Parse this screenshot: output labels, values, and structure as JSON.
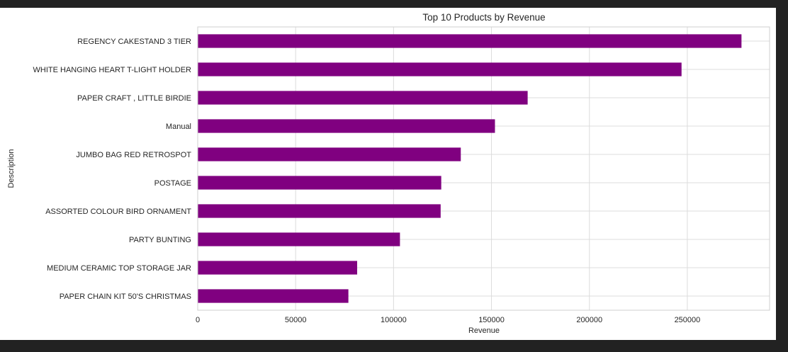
{
  "colors": {
    "background": "#222222",
    "figure": "#ffffff",
    "bar": "#800080",
    "grid": "#dcdcdc",
    "text": "#262626"
  },
  "chart_data": {
    "type": "bar",
    "orientation": "horizontal",
    "title": "Top 10 Products by Revenue",
    "xlabel": "Revenue",
    "ylabel": "Description",
    "xlim": [
      0,
      292000
    ],
    "xticks": [
      0,
      50000,
      100000,
      150000,
      200000,
      250000
    ],
    "grid": true,
    "categories": [
      "REGENCY CAKESTAND 3 TIER",
      "WHITE HANGING HEART T-LIGHT HOLDER",
      "PAPER CRAFT , LITTLE BIRDIE",
      "Manual",
      "JUMBO BAG RED RETROSPOT",
      "POSTAGE",
      "ASSORTED COLOUR BIRD ORNAMENT",
      "PARTY BUNTING",
      "MEDIUM CERAMIC TOP STORAGE JAR",
      "PAPER CHAIN KIT 50'S CHRISTMAS "
    ],
    "values": [
      277656,
      247049,
      168470,
      151777,
      134329,
      124351,
      124043,
      103269,
      81417,
      76938
    ]
  }
}
